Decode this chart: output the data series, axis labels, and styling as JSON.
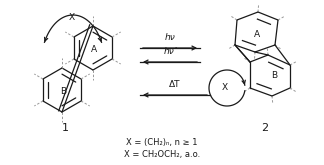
{
  "bg_color": "#ffffff",
  "label1": "1",
  "label2": "2",
  "label_A": "A",
  "label_B": "B",
  "label_X": "X",
  "arrow_fwd_label": "hν",
  "arrow_rev1_label": "hν’",
  "arrow_rev2_label": "ΔT",
  "footnote1": "X = (CH₂)ₙ, n ≥ 1",
  "footnote2": "X = CH₂OCH₂, a.o.",
  "line_color": "#1a1a1a",
  "dashed_color": "#999999",
  "figsize": [
    3.24,
    1.65
  ],
  "dpi": 100
}
